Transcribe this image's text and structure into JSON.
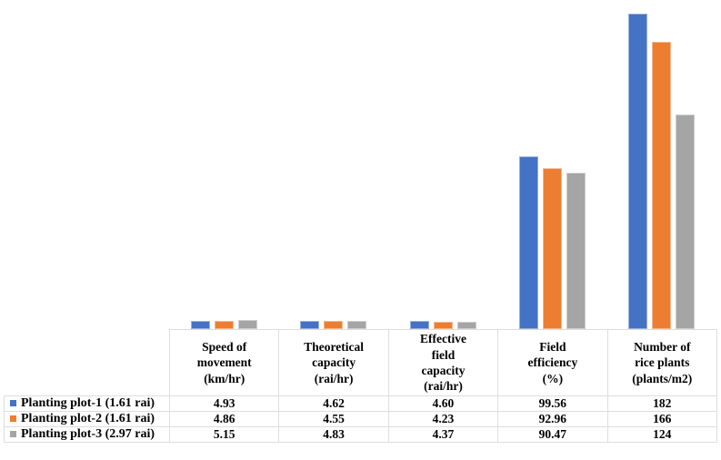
{
  "chart_data": {
    "type": "bar",
    "title": "",
    "xlabel": "",
    "ylabel": "",
    "ylim": [
      0,
      190
    ],
    "gridlines": false,
    "y_axis_visible": false,
    "legend_position": "data-table-left-column",
    "data_table_shown": true,
    "categories": [
      "Speed of\nmovement\n(km/hr)",
      "Theoretical\ncapacity\n(rai/hr)",
      "Effective\nfield\ncapacity\n(rai/hr)",
      "Field\nefficiency\n(%)",
      "Number of\nrice plants\n(plants/m2)"
    ],
    "series": [
      {
        "name": "Planting plot-1 (1.61 rai)",
        "color": "#4472C4",
        "values": [
          4.93,
          4.62,
          4.6,
          99.56,
          182
        ],
        "labels": [
          "4.93",
          "4.62",
          "4.60",
          "99.56",
          "182"
        ]
      },
      {
        "name": "Planting plot-2 (1.61 rai)",
        "color": "#ED7D31",
        "values": [
          4.86,
          4.55,
          4.23,
          92.96,
          166
        ],
        "labels": [
          "4.86",
          "4.55",
          "4.23",
          "92.96",
          "166"
        ]
      },
      {
        "name": "Planting plot-3 (2.97 rai)",
        "color": "#A5A5A5",
        "values": [
          5.15,
          4.83,
          4.37,
          90.47,
          124
        ],
        "labels": [
          "5.15",
          "4.83",
          "4.37",
          "90.47",
          "124"
        ]
      }
    ]
  }
}
